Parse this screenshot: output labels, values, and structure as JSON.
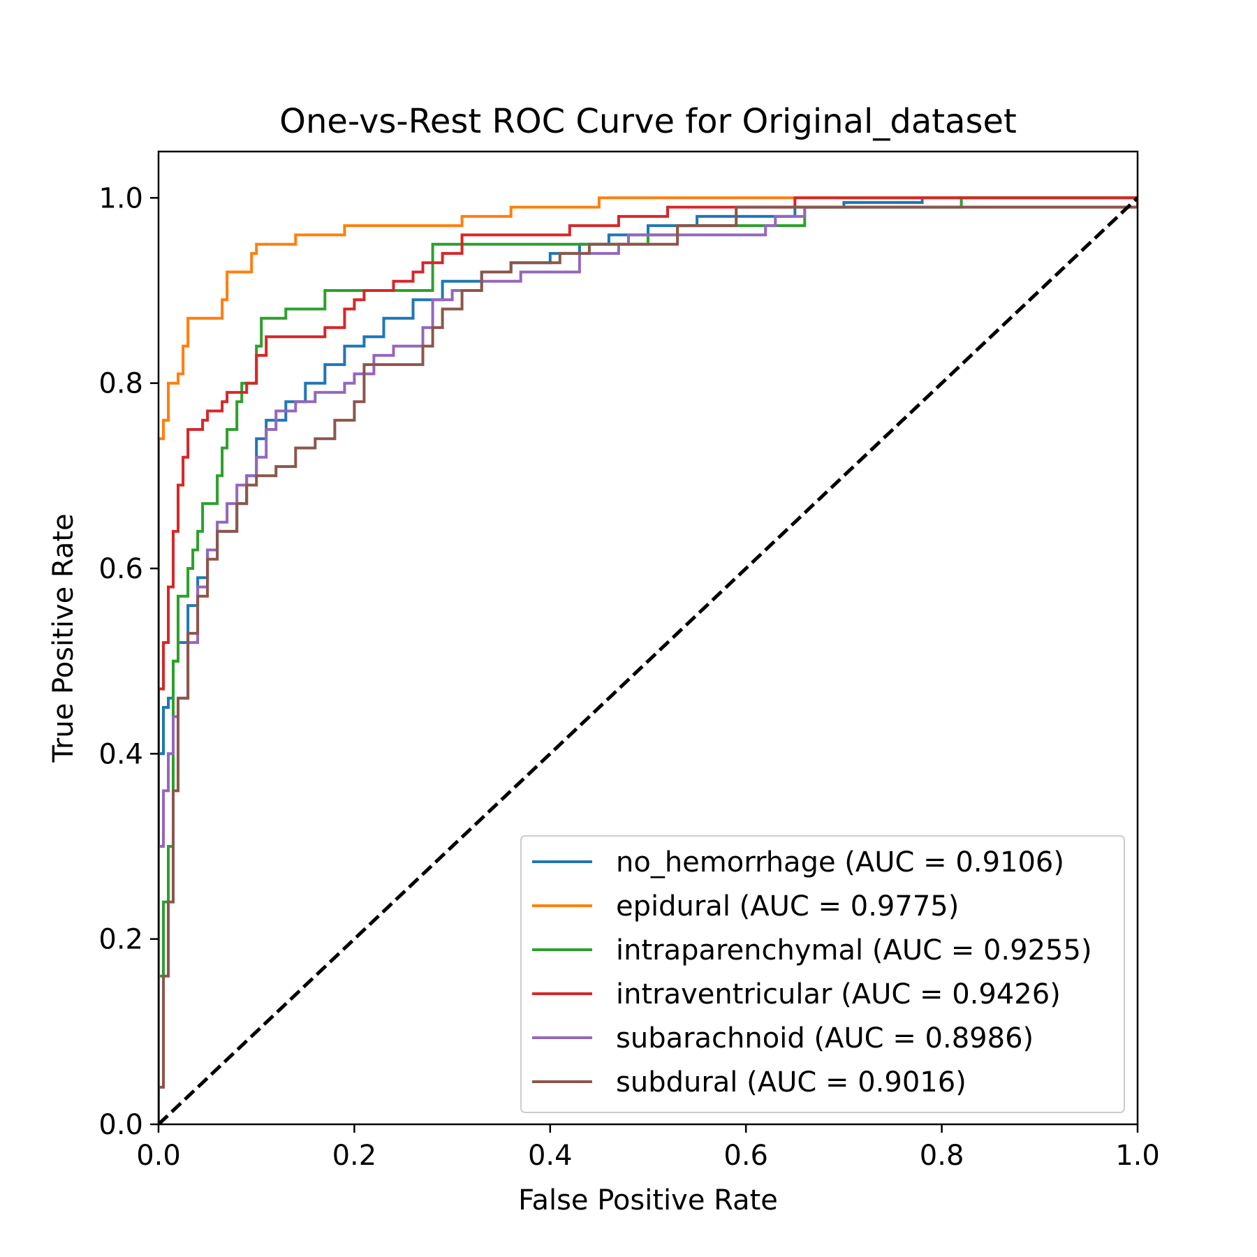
{
  "chart_data": {
    "type": "line",
    "title": "One-vs-Rest ROC Curve for Original_dataset",
    "xlabel": "False Positive Rate",
    "ylabel": "True Positive Rate",
    "xlim": [
      0.0,
      1.0
    ],
    "ylim": [
      0.0,
      1.05
    ],
    "xticks": [
      0.0,
      0.2,
      0.4,
      0.6,
      0.8,
      1.0
    ],
    "yticks": [
      0.0,
      0.2,
      0.4,
      0.6,
      0.8,
      1.0
    ],
    "xtick_labels": [
      "0.0",
      "0.2",
      "0.4",
      "0.6",
      "0.8",
      "1.0"
    ],
    "ytick_labels": [
      "0.0",
      "0.2",
      "0.4",
      "0.6",
      "0.8",
      "1.0"
    ],
    "grid": false,
    "legend_position": "lower-right",
    "series": [
      {
        "name": "no_hemorrhage (AUC = 0.9106)",
        "color": "#1f77b4",
        "x": [
          0.0,
          0.0,
          0.005,
          0.01,
          0.015,
          0.02,
          0.03,
          0.04,
          0.05,
          0.06,
          0.08,
          0.09,
          0.1,
          0.11,
          0.13,
          0.15,
          0.17,
          0.19,
          0.21,
          0.23,
          0.26,
          0.29,
          0.33,
          0.36,
          0.4,
          0.43,
          0.46,
          0.5,
          0.55,
          0.6,
          0.65,
          0.7,
          0.78,
          1.0
        ],
        "y": [
          0.0,
          0.4,
          0.45,
          0.46,
          0.5,
          0.52,
          0.56,
          0.59,
          0.62,
          0.64,
          0.67,
          0.7,
          0.74,
          0.76,
          0.78,
          0.8,
          0.82,
          0.84,
          0.85,
          0.87,
          0.89,
          0.91,
          0.92,
          0.93,
          0.94,
          0.95,
          0.96,
          0.97,
          0.98,
          0.98,
          0.99,
          0.995,
          1.0,
          1.0
        ]
      },
      {
        "name": "epidural (AUC = 0.9775)",
        "color": "#ff7f0e",
        "x": [
          0.0,
          0.0,
          0.005,
          0.01,
          0.015,
          0.02,
          0.025,
          0.03,
          0.06,
          0.065,
          0.07,
          0.09,
          0.095,
          0.1,
          0.11,
          0.13,
          0.14,
          0.18,
          0.19,
          0.3,
          0.31,
          0.35,
          0.36,
          0.44,
          0.45,
          1.0
        ],
        "y": [
          0.0,
          0.74,
          0.76,
          0.8,
          0.8,
          0.81,
          0.84,
          0.87,
          0.87,
          0.89,
          0.92,
          0.92,
          0.94,
          0.95,
          0.95,
          0.95,
          0.96,
          0.96,
          0.97,
          0.97,
          0.98,
          0.98,
          0.99,
          0.99,
          1.0,
          1.0
        ]
      },
      {
        "name": "intraparenchymal (AUC = 0.9255)",
        "color": "#2ca02c",
        "x": [
          0.0,
          0.0,
          0.005,
          0.01,
          0.015,
          0.02,
          0.03,
          0.035,
          0.04,
          0.045,
          0.055,
          0.06,
          0.065,
          0.07,
          0.08,
          0.085,
          0.09,
          0.1,
          0.105,
          0.11,
          0.13,
          0.17,
          0.17,
          0.26,
          0.28,
          0.28,
          0.43,
          0.5,
          0.53,
          0.65,
          0.66,
          0.81,
          0.82,
          1.0
        ],
        "y": [
          0.0,
          0.16,
          0.24,
          0.3,
          0.5,
          0.57,
          0.6,
          0.62,
          0.64,
          0.67,
          0.67,
          0.7,
          0.73,
          0.75,
          0.78,
          0.8,
          0.8,
          0.84,
          0.87,
          0.87,
          0.88,
          0.88,
          0.9,
          0.9,
          0.92,
          0.95,
          0.95,
          0.96,
          0.97,
          0.97,
          0.99,
          0.99,
          1.0,
          1.0
        ]
      },
      {
        "name": "intraventricular (AUC = 0.9426)",
        "color": "#d62728",
        "x": [
          0.0,
          0.0,
          0.005,
          0.01,
          0.015,
          0.02,
          0.025,
          0.03,
          0.035,
          0.045,
          0.05,
          0.06,
          0.065,
          0.07,
          0.09,
          0.1,
          0.11,
          0.13,
          0.15,
          0.17,
          0.19,
          0.2,
          0.21,
          0.24,
          0.26,
          0.27,
          0.29,
          0.31,
          0.38,
          0.42,
          0.45,
          0.47,
          0.52,
          0.58,
          0.65,
          1.0
        ],
        "y": [
          0.0,
          0.47,
          0.52,
          0.58,
          0.64,
          0.69,
          0.72,
          0.75,
          0.75,
          0.76,
          0.77,
          0.77,
          0.78,
          0.79,
          0.8,
          0.83,
          0.85,
          0.85,
          0.85,
          0.86,
          0.88,
          0.89,
          0.9,
          0.91,
          0.92,
          0.93,
          0.94,
          0.96,
          0.96,
          0.97,
          0.97,
          0.98,
          0.99,
          0.99,
          1.0,
          1.0
        ]
      },
      {
        "name": "subarachnoid (AUC = 0.8986)",
        "color": "#9467bd",
        "x": [
          0.0,
          0.0,
          0.005,
          0.01,
          0.015,
          0.02,
          0.03,
          0.04,
          0.05,
          0.06,
          0.07,
          0.08,
          0.09,
          0.1,
          0.11,
          0.12,
          0.14,
          0.16,
          0.19,
          0.2,
          0.22,
          0.24,
          0.27,
          0.28,
          0.3,
          0.33,
          0.37,
          0.43,
          0.47,
          0.48,
          0.62,
          0.63,
          0.66,
          1.0
        ],
        "y": [
          0.0,
          0.3,
          0.36,
          0.4,
          0.44,
          0.46,
          0.52,
          0.58,
          0.62,
          0.65,
          0.67,
          0.69,
          0.7,
          0.72,
          0.75,
          0.77,
          0.78,
          0.79,
          0.8,
          0.81,
          0.83,
          0.84,
          0.86,
          0.89,
          0.9,
          0.91,
          0.92,
          0.94,
          0.95,
          0.96,
          0.97,
          0.98,
          0.99,
          1.0
        ]
      },
      {
        "name": "subdural (AUC = 0.9016)",
        "color": "#8c564b",
        "x": [
          0.0,
          0.0,
          0.005,
          0.01,
          0.015,
          0.02,
          0.03,
          0.04,
          0.05,
          0.06,
          0.08,
          0.09,
          0.1,
          0.12,
          0.14,
          0.16,
          0.18,
          0.2,
          0.21,
          0.25,
          0.27,
          0.28,
          0.29,
          0.31,
          0.33,
          0.36,
          0.41,
          0.44,
          0.53,
          0.59,
          1.0
        ],
        "y": [
          0.0,
          0.04,
          0.16,
          0.24,
          0.36,
          0.46,
          0.53,
          0.57,
          0.61,
          0.64,
          0.67,
          0.69,
          0.7,
          0.71,
          0.73,
          0.74,
          0.76,
          0.78,
          0.82,
          0.82,
          0.84,
          0.86,
          0.88,
          0.9,
          0.92,
          0.93,
          0.94,
          0.95,
          0.97,
          0.99,
          1.0
        ]
      }
    ],
    "reference_line": {
      "x": [
        0.0,
        1.0
      ],
      "y": [
        0.0,
        1.0
      ],
      "color": "#000000",
      "style": "dashed"
    }
  }
}
